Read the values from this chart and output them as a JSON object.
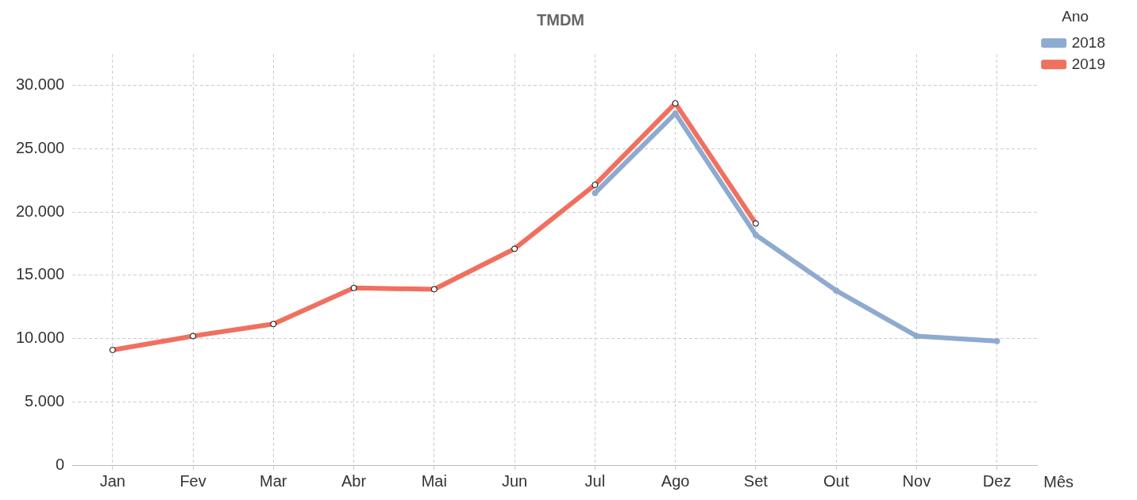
{
  "chart_data": {
    "type": "line",
    "title": "TMDM",
    "xlabel": "Mês",
    "legend_title": "Ano",
    "categories": [
      "Jan",
      "Fev",
      "Mar",
      "Abr",
      "Mai",
      "Jun",
      "Jul",
      "Ago",
      "Set",
      "Out",
      "Nov",
      "Dez"
    ],
    "series": [
      {
        "name": "2018",
        "color": "#8eaacf",
        "values": [
          null,
          null,
          null,
          null,
          null,
          null,
          21500,
          27800,
          18200,
          13800,
          10200,
          9800
        ]
      },
      {
        "name": "2019",
        "color": "#f07060",
        "values": [
          9100,
          10200,
          11150,
          14000,
          13900,
          17100,
          22150,
          28600,
          19100,
          null,
          null,
          null
        ]
      }
    ],
    "ylim": [
      0,
      32500
    ],
    "yticks": [
      0,
      {
        "value": 5000,
        "label": "5.000"
      },
      {
        "value": 10000,
        "label": "10.000"
      },
      {
        "value": 15000,
        "label": "15.000"
      },
      {
        "value": 20000,
        "label": "20.000"
      },
      {
        "value": 25000,
        "label": "25.000"
      },
      {
        "value": 30000,
        "label": "30.000"
      }
    ],
    "grid": true,
    "legend": "top right",
    "marker": "circle",
    "line_style": "solid"
  }
}
